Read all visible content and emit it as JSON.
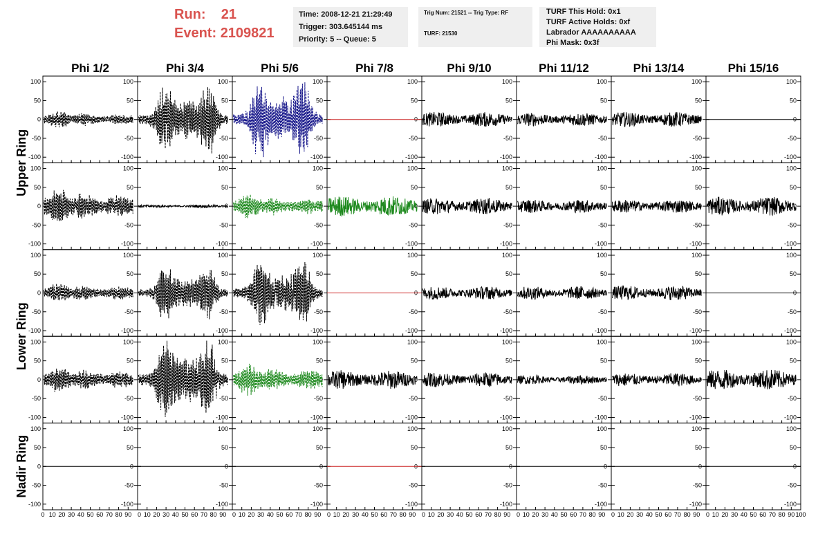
{
  "header": {
    "run_label": "Run:",
    "run_value": "21",
    "event_label": "Event:",
    "event_value": "2109821"
  },
  "info_boxes": {
    "time": "Time: 2008-12-21 21:29:49",
    "trigger": "Trigger: 303.645144 ms",
    "priority": "Priority: 5 -- Queue: 5",
    "trig_num": "Trig Num: 21521 -- Trig Type: RF",
    "turf": "TURF: 21530",
    "turf_hold": "TURF This Hold: 0x1",
    "turf_active": "TURF Active Holds: 0xf",
    "labrador": "Labrador AAAAAAAAAA",
    "phi_mask": "Phi Mask: 0x3f"
  },
  "chart_data": {
    "type": "line",
    "title": "",
    "columns": [
      "Phi 1/2",
      "Phi 3/4",
      "Phi 5/6",
      "Phi 7/8",
      "Phi 9/10",
      "Phi 11/12",
      "Phi 13/14",
      "Phi 15/16"
    ],
    "ring_labels": [
      {
        "name": "Upper Ring",
        "rows": [
          0,
          1
        ]
      },
      {
        "name": "Lower Ring",
        "rows": [
          2,
          3
        ]
      },
      {
        "name": "Nadir Ring",
        "rows": [
          4
        ]
      }
    ],
    "xlim": [
      0,
      100
    ],
    "ylim": [
      -115,
      115
    ],
    "x_ticks": [
      0,
      10,
      20,
      30,
      40,
      50,
      60,
      70,
      80,
      90,
      100
    ],
    "x_tick_labels": [
      "0",
      "10",
      "20",
      "30",
      "40",
      "50",
      "60",
      "70",
      "80",
      "90",
      "100"
    ],
    "y_ticks": [
      -100,
      -50,
      0,
      50,
      100
    ],
    "y_tick_labels": [
      "-100",
      "-50",
      "0",
      "50",
      "100"
    ],
    "colors": {
      "black": "#000000",
      "blue": "#1a1a8c",
      "green": "#1f8a1f",
      "red": "#cc2222"
    },
    "waveforms": [
      [
        {
          "kind": "burst",
          "amp": 25,
          "color": "black",
          "dashed": true
        },
        {
          "kind": "burst2",
          "amp": 95,
          "color": "black",
          "dashed": true
        },
        {
          "kind": "burst2",
          "amp": 105,
          "color": "blue",
          "dashed": true
        },
        {
          "kind": "flat",
          "amp": 0,
          "color": "red",
          "dashed": false
        },
        {
          "kind": "noise",
          "amp": 20,
          "color": "black",
          "dashed": false
        },
        {
          "kind": "noise",
          "amp": 18,
          "color": "black",
          "dashed": false
        },
        {
          "kind": "noise",
          "amp": 20,
          "color": "black",
          "dashed": false
        },
        {
          "kind": "flat",
          "amp": 0,
          "color": "black",
          "dashed": false
        }
      ],
      [
        {
          "kind": "burst",
          "amp": 50,
          "color": "black",
          "dashed": true
        },
        {
          "kind": "noise",
          "amp": 4,
          "color": "black",
          "dashed": false
        },
        {
          "kind": "burst",
          "amp": 35,
          "color": "green",
          "dashed": true
        },
        {
          "kind": "noise",
          "amp": 28,
          "color": "green",
          "dashed": false
        },
        {
          "kind": "noise",
          "amp": 22,
          "color": "black",
          "dashed": false
        },
        {
          "kind": "noise",
          "amp": 18,
          "color": "black",
          "dashed": false
        },
        {
          "kind": "noise",
          "amp": 18,
          "color": "black",
          "dashed": false
        },
        {
          "kind": "noise",
          "amp": 25,
          "color": "black",
          "dashed": false
        }
      ],
      [
        {
          "kind": "burst",
          "amp": 30,
          "color": "black",
          "dashed": true
        },
        {
          "kind": "burst2",
          "amp": 70,
          "color": "black",
          "dashed": true
        },
        {
          "kind": "burst2",
          "amp": 90,
          "color": "black",
          "dashed": true
        },
        {
          "kind": "flat",
          "amp": 0,
          "color": "red",
          "dashed": false
        },
        {
          "kind": "noise",
          "amp": 18,
          "color": "black",
          "dashed": false
        },
        {
          "kind": "noise",
          "amp": 18,
          "color": "black",
          "dashed": false
        },
        {
          "kind": "noise",
          "amp": 20,
          "color": "black",
          "dashed": false
        },
        {
          "kind": "flat",
          "amp": 0,
          "color": "black",
          "dashed": false
        }
      ],
      [
        {
          "kind": "burst",
          "amp": 40,
          "color": "black",
          "dashed": true
        },
        {
          "kind": "burst2",
          "amp": 105,
          "color": "black",
          "dashed": true
        },
        {
          "kind": "burst",
          "amp": 45,
          "color": "green",
          "dashed": true
        },
        {
          "kind": "noise",
          "amp": 25,
          "color": "black",
          "dashed": false
        },
        {
          "kind": "noise",
          "amp": 20,
          "color": "black",
          "dashed": false
        },
        {
          "kind": "noise",
          "amp": 12,
          "color": "black",
          "dashed": false
        },
        {
          "kind": "noise",
          "amp": 18,
          "color": "black",
          "dashed": false
        },
        {
          "kind": "noise",
          "amp": 28,
          "color": "black",
          "dashed": false
        }
      ],
      [
        {
          "kind": "flat",
          "amp": 0,
          "color": "black",
          "dashed": false
        },
        {
          "kind": "flat",
          "amp": 0,
          "color": "black",
          "dashed": false
        },
        {
          "kind": "flat",
          "amp": 0,
          "color": "black",
          "dashed": false
        },
        {
          "kind": "flat",
          "amp": 0,
          "color": "red",
          "dashed": false
        },
        {
          "kind": "flat",
          "amp": 0,
          "color": "black",
          "dashed": false
        },
        {
          "kind": "flat",
          "amp": 0,
          "color": "black",
          "dashed": false
        },
        {
          "kind": "flat",
          "amp": 0,
          "color": "black",
          "dashed": false
        },
        {
          "kind": "flat",
          "amp": 0,
          "color": "black",
          "dashed": false
        }
      ]
    ]
  }
}
